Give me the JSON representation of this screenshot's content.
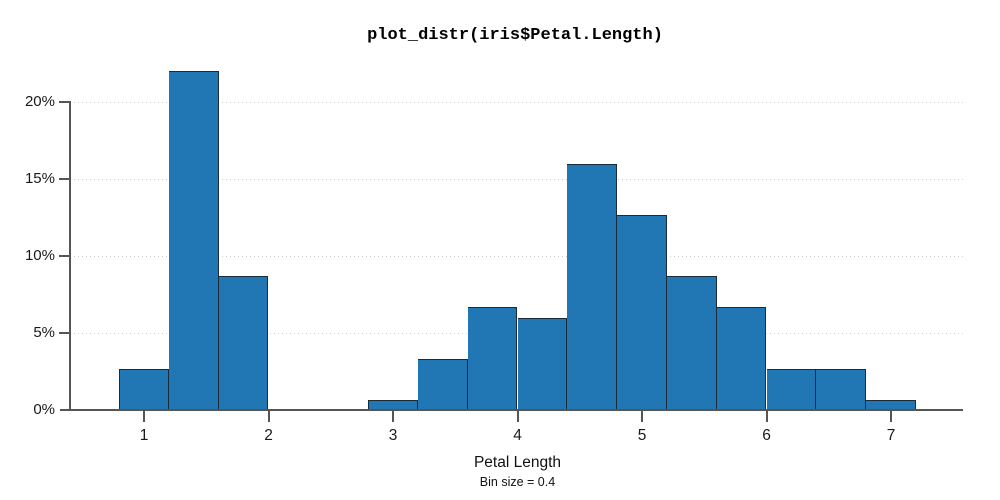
{
  "chart_data": {
    "type": "bar",
    "subtype": "histogram",
    "title": "plot_distr(iris$Petal.Length)",
    "xlabel": "Petal Length",
    "bin_caption": "Bin size = 0.4",
    "bin_size": 0.4,
    "ylabel": "",
    "x_ticks": [
      1,
      2,
      3,
      4,
      5,
      6,
      7
    ],
    "y_ticks": [
      {
        "label": "0%",
        "value": 0
      },
      {
        "label": "5%",
        "value": 5
      },
      {
        "label": "10%",
        "value": 10
      },
      {
        "label": "15%",
        "value": 15
      },
      {
        "label": "20%",
        "value": 20
      }
    ],
    "ylim": [
      0,
      22
    ],
    "xlim": [
      0.3,
      7.6
    ],
    "grid": "horizontal-dotted",
    "legend": "none",
    "bins": [
      {
        "start": 0.8,
        "end": 1.2,
        "percent": 2.67
      },
      {
        "start": 1.2,
        "end": 1.6,
        "percent": 22.0
      },
      {
        "start": 1.6,
        "end": 2.0,
        "percent": 8.67
      },
      {
        "start": 2.0,
        "end": 2.4,
        "percent": 0
      },
      {
        "start": 2.4,
        "end": 2.8,
        "percent": 0
      },
      {
        "start": 2.8,
        "end": 3.2,
        "percent": 0.67
      },
      {
        "start": 3.2,
        "end": 3.6,
        "percent": 3.33
      },
      {
        "start": 3.6,
        "end": 4.0,
        "percent": 6.67
      },
      {
        "start": 4.0,
        "end": 4.4,
        "percent": 6.0
      },
      {
        "start": 4.4,
        "end": 4.8,
        "percent": 16.0
      },
      {
        "start": 4.8,
        "end": 5.2,
        "percent": 12.67
      },
      {
        "start": 5.2,
        "end": 5.6,
        "percent": 8.67
      },
      {
        "start": 5.6,
        "end": 6.0,
        "percent": 6.67
      },
      {
        "start": 6.0,
        "end": 6.4,
        "percent": 2.67
      },
      {
        "start": 6.4,
        "end": 6.8,
        "percent": 2.67
      },
      {
        "start": 6.8,
        "end": 7.2,
        "percent": 0.67
      }
    ],
    "colors": {
      "bar_fill": "#2077b4",
      "bar_border": "#1b2b38",
      "axis": "#555555",
      "grid": "#cfcfcf",
      "text": "#111111",
      "background": "#ffffff"
    }
  }
}
